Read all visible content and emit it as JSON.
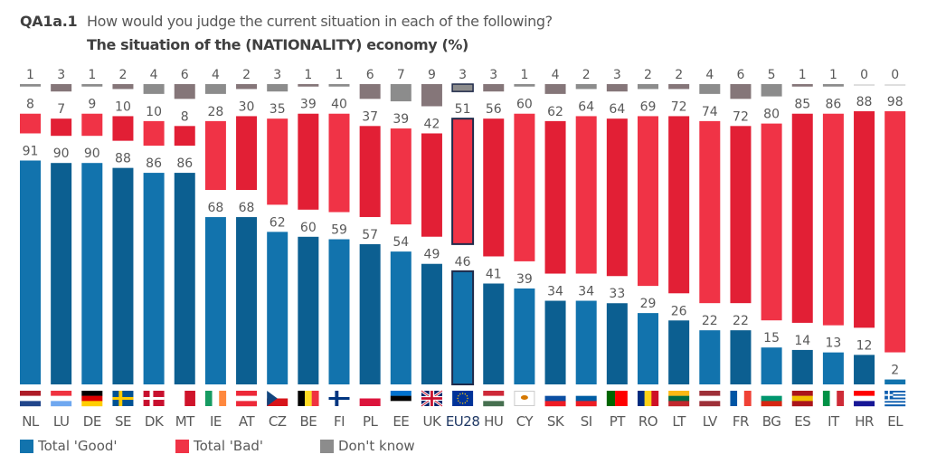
{
  "header": {
    "code": "QA1a.1",
    "question": "How would you judge the current situation in each of the following?",
    "subtitle": "The situation of the (NATIONALITY) economy  (%)"
  },
  "colors": {
    "good_light": "#1273ad",
    "good_dark": "#0c5f91",
    "bad_light": "#f03346",
    "bad_dark": "#e21f35",
    "dk_light": "#8c8c8c",
    "dk_dark": "#857679",
    "highlight_border": "#1f2a4a",
    "text": "#595959"
  },
  "legend": [
    {
      "label": "Total 'Good'",
      "color": "#1273ad"
    },
    {
      "label": "Total 'Bad'",
      "color": "#f03346"
    },
    {
      "label": "Don't know",
      "color": "#8c8c8c"
    }
  ],
  "chart_data": {
    "type": "bar",
    "stacked": true,
    "title": "The situation of the (NATIONALITY) economy (%)",
    "xlabel": "",
    "ylabel": "%",
    "ylim": [
      0,
      100
    ],
    "grid": false,
    "legend_position": "bottom-left",
    "highlight_category": "EU28",
    "categories": [
      "NL",
      "LU",
      "DE",
      "SE",
      "DK",
      "MT",
      "IE",
      "AT",
      "CZ",
      "BE",
      "FI",
      "PL",
      "EE",
      "UK",
      "EU28",
      "HU",
      "CY",
      "SK",
      "SI",
      "PT",
      "RO",
      "LT",
      "LV",
      "FR",
      "BG",
      "ES",
      "IT",
      "HR",
      "EL"
    ],
    "series": [
      {
        "name": "Total 'Good'",
        "values": [
          91,
          90,
          90,
          88,
          86,
          86,
          68,
          68,
          62,
          60,
          59,
          57,
          54,
          49,
          46,
          41,
          39,
          34,
          34,
          33,
          29,
          26,
          22,
          22,
          15,
          14,
          13,
          12,
          2
        ]
      },
      {
        "name": "Total 'Bad'",
        "values": [
          8,
          7,
          9,
          10,
          10,
          8,
          28,
          30,
          35,
          39,
          40,
          37,
          39,
          42,
          51,
          56,
          60,
          62,
          64,
          64,
          69,
          72,
          74,
          72,
          80,
          85,
          86,
          88,
          98
        ]
      },
      {
        "name": "Don't know",
        "values": [
          1,
          3,
          1,
          2,
          4,
          6,
          4,
          2,
          3,
          1,
          1,
          6,
          7,
          9,
          3,
          3,
          1,
          4,
          2,
          3,
          2,
          2,
          4,
          6,
          5,
          1,
          1,
          0,
          0
        ]
      }
    ]
  }
}
